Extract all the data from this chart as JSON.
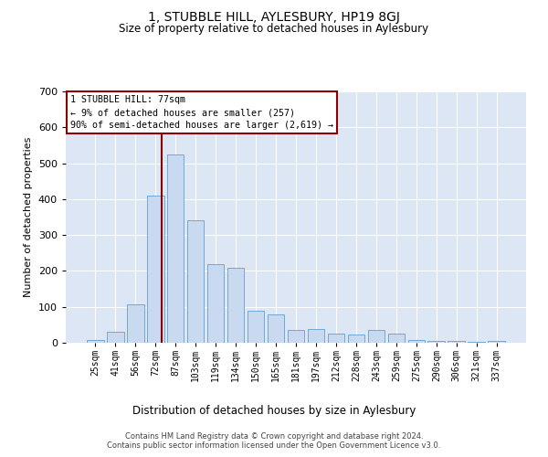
{
  "title": "1, STUBBLE HILL, AYLESBURY, HP19 8GJ",
  "subtitle": "Size of property relative to detached houses in Aylesbury",
  "xlabel": "Distribution of detached houses by size in Aylesbury",
  "ylabel": "Number of detached properties",
  "categories": [
    "25sqm",
    "41sqm",
    "56sqm",
    "72sqm",
    "87sqm",
    "103sqm",
    "119sqm",
    "134sqm",
    "150sqm",
    "165sqm",
    "181sqm",
    "197sqm",
    "212sqm",
    "228sqm",
    "243sqm",
    "259sqm",
    "275sqm",
    "290sqm",
    "306sqm",
    "321sqm",
    "337sqm"
  ],
  "bar_heights": [
    8,
    30,
    108,
    410,
    525,
    340,
    220,
    210,
    90,
    80,
    35,
    38,
    25,
    22,
    35,
    25,
    8,
    4,
    4,
    2,
    5
  ],
  "bar_color": "#c9d9f0",
  "bar_edge_color": "#6fa8d6",
  "vline_color": "#8b0000",
  "annotation_text": "1 STUBBLE HILL: 77sqm\n← 9% of detached houses are smaller (257)\n90% of semi-detached houses are larger (2,619) →",
  "ylim": [
    0,
    700
  ],
  "yticks": [
    0,
    100,
    200,
    300,
    400,
    500,
    600,
    700
  ],
  "background_color": "#dce6f4",
  "footer_line1": "Contains HM Land Registry data © Crown copyright and database right 2024.",
  "footer_line2": "Contains public sector information licensed under the Open Government Licence v3.0."
}
